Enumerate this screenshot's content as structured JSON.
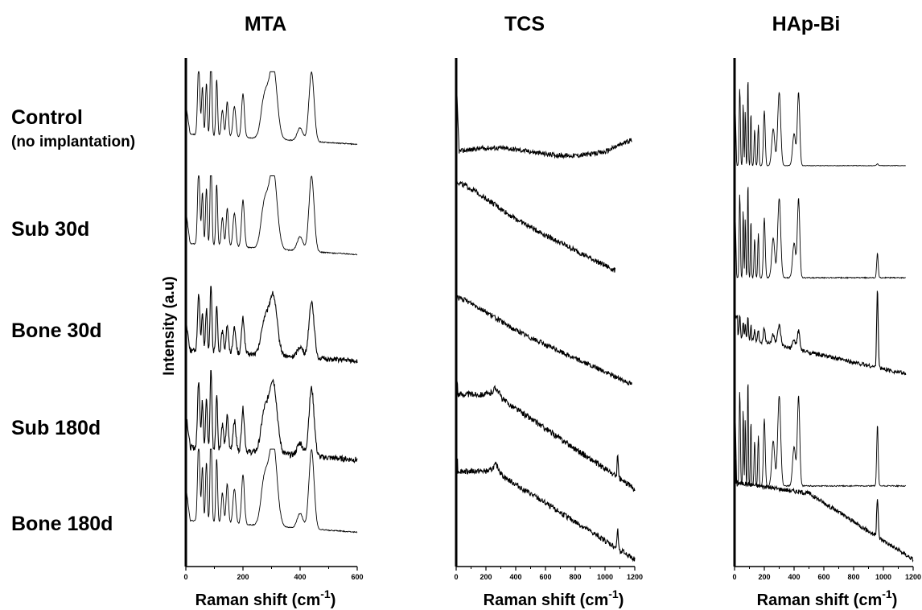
{
  "chart_data": {
    "type": "line",
    "panels": [
      {
        "title": "MTA",
        "xlabel": "Raman shift (cm-1)",
        "xlim": [
          0,
          600
        ],
        "ticks": [
          0,
          200,
          400,
          600
        ],
        "series": [
          {
            "name": "Control (no implantation)",
            "pattern": "mta",
            "base_start": 0.45,
            "base_end": 0.05,
            "peaks": 1.0,
            "noise": 0.01
          },
          {
            "name": "Sub 30d",
            "pattern": "mta",
            "base_start": 0.45,
            "base_end": 0.05,
            "peaks": 1.0,
            "noise": 0.01
          },
          {
            "name": "Bone 30d",
            "pattern": "mta",
            "base_start": 0.45,
            "base_end": 0.05,
            "peaks": 0.8,
            "noise": 0.05
          },
          {
            "name": "Sub 180d",
            "pattern": "mta",
            "base_start": 0.45,
            "base_end": 0.05,
            "peaks": 0.8,
            "noise": 0.05
          },
          {
            "name": "Bone 180d",
            "pattern": "mta",
            "base_start": 0.45,
            "base_end": 0.05,
            "peaks": 1.0,
            "noise": 0.01
          }
        ]
      },
      {
        "title": "TCS",
        "xlabel": "Raman shift (cm-1)",
        "xlim": [
          0,
          1200
        ],
        "ticks": [
          0,
          200,
          400,
          600,
          800,
          1000,
          1200
        ],
        "series": [
          {
            "name": "Control (no implantation)",
            "pattern": "tcs_flat",
            "x_end": 1180,
            "noise": 0.05
          },
          {
            "name": "Sub 30d",
            "pattern": "tcs_slope",
            "x_end": 1070,
            "base_start": 0.95,
            "base_end": 0.05,
            "noise": 0.05
          },
          {
            "name": "Bone 30d",
            "pattern": "tcs_slope",
            "x_end": 1180,
            "base_start": 0.9,
            "base_end": 0.05,
            "noise": 0.05
          },
          {
            "name": "Sub 180d",
            "pattern": "tcs_slope_peak",
            "x_end": 1200,
            "base_start": 0.9,
            "base_end": 0.05,
            "noise": 0.05
          },
          {
            "name": "Bone 180d",
            "pattern": "tcs_slope_peak",
            "x_end": 1200,
            "base_start": 0.9,
            "base_end": 0.05,
            "noise": 0.05
          }
        ]
      },
      {
        "title": "HAp-Bi",
        "xlabel": "Raman shift (cm-1)",
        "xlim": [
          0,
          1200
        ],
        "ticks": [
          0,
          200,
          400,
          600,
          800,
          1000,
          1200
        ],
        "series": [
          {
            "name": "Control (no implantation)",
            "pattern": "hap",
            "x_end": 1150,
            "peaks": 1.0,
            "p960": 0.02,
            "noise": 0.005
          },
          {
            "name": "Sub 30d",
            "pattern": "hap",
            "x_end": 1150,
            "peaks": 1.0,
            "p960": 0.25,
            "noise": 0.01
          },
          {
            "name": "Bone 30d",
            "pattern": "hap_slope",
            "x_end": 1150,
            "peaks": 0.25,
            "p960": 0.8,
            "noise": 0.04
          },
          {
            "name": "Sub 180d",
            "pattern": "hap",
            "x_end": 1150,
            "peaks": 1.0,
            "p960": 0.55,
            "noise": 0.01
          },
          {
            "name": "Bone 180d",
            "pattern": "hap_bone",
            "x_end": 1200,
            "peaks": 0.0,
            "p960": 0.35,
            "noise": 0.04
          }
        ]
      }
    ],
    "ylabel": "Intensity (a.u)",
    "row_labels": [
      "Control",
      "Sub 30d",
      "Bone 30d",
      "Sub 180d",
      "Bone 180d"
    ],
    "row_sublabel": "(no implantation)",
    "xlabel_main": "Raman shift (cm",
    "xlabel_sup": "-1",
    "xlabel_close": ")"
  }
}
